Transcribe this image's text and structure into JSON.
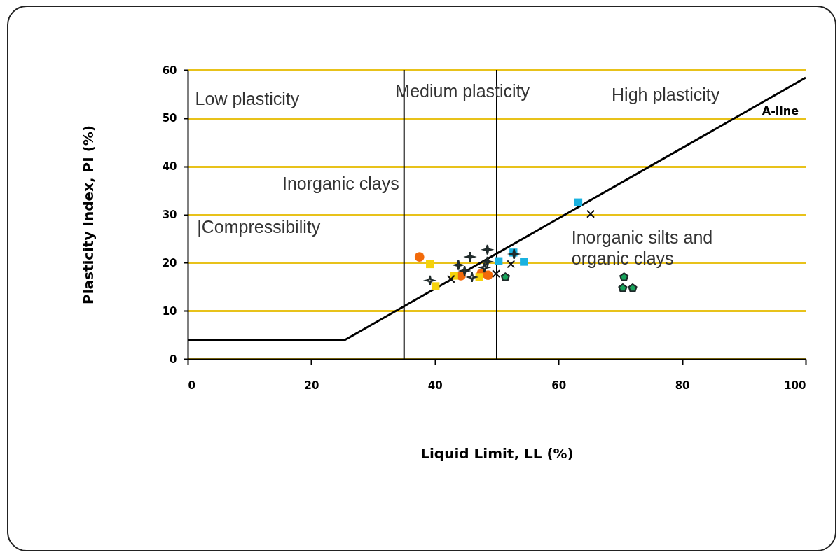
{
  "chart_data": {
    "type": "scatter",
    "xlabel": "Liquid Limit, LL (%)",
    "ylabel": "Plasticity Index, PI (%)",
    "xlim": [
      0,
      100
    ],
    "ylim": [
      0,
      60
    ],
    "xticks": [
      0,
      20,
      40,
      60,
      80,
      100
    ],
    "yticks": [
      0,
      10,
      20,
      30,
      40,
      50,
      60
    ],
    "grid": "y",
    "series": [
      {
        "type": "line",
        "name": "A-line",
        "color": "#000000",
        "line_style": "solid",
        "marker": "none",
        "x": [
          0,
          25.5,
          100
        ],
        "values": [
          4,
          4,
          58.4
        ]
      },
      {
        "color": "#f26a0a",
        "marker": "circle",
        "x": [
          37.5,
          44.2,
          47.5,
          48.6
        ],
        "values": [
          21.2,
          17.3,
          17.7,
          17.4
        ]
      },
      {
        "color": "#f5d20a",
        "marker": "square",
        "x": [
          39.2,
          40.1,
          43.1,
          47.2
        ],
        "values": [
          19.7,
          15.1,
          17.3,
          17.0
        ]
      },
      {
        "color": "#1ab2e0",
        "marker": "square",
        "x": [
          50.3,
          54.4,
          52.7,
          63.2
        ],
        "values": [
          20.3,
          20.2,
          22.1,
          32.5
        ]
      },
      {
        "color": "#111111",
        "marker": "cross",
        "x": [
          42.6,
          49.9,
          52.3,
          65.2
        ],
        "values": [
          16.6,
          17.7,
          19.7,
          30.1
        ]
      },
      {
        "color": "#2f3a3a",
        "marker": "star",
        "x": [
          43.8,
          44.8,
          45.7,
          48.5,
          48.5,
          52.8
        ],
        "values": [
          19.5,
          18.3,
          21.2,
          22.7,
          20.2,
          21.8
        ]
      },
      {
        "color": "#ffffff",
        "marker": "star",
        "x": [
          39.2,
          46.0,
          48.0
        ],
        "values": [
          16.3,
          17.0,
          19.0
        ]
      },
      {
        "color": "#17a35a",
        "x": [
          51.4,
          70.6,
          70.4,
          72.0
        ],
        "values": [
          17.0,
          17.0,
          14.7,
          14.7
        ]
      }
    ],
    "ref_lines": [
      {
        "axis": "x",
        "value": 35,
        "color": "#000000"
      },
      {
        "axis": "x",
        "value": 50,
        "color": "#000000"
      }
    ],
    "annotations": [
      "Low plasticity",
      "Medium plasticity",
      "High plasticity",
      "Inorganic clays",
      "|Compressibility",
      "Inorganic silts and organic clays"
    ]
  }
}
